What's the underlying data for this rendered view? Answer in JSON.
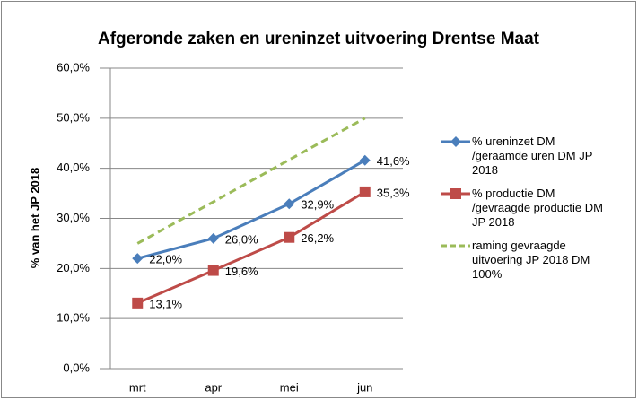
{
  "chart_data": {
    "type": "line",
    "title": "Afgeronde zaken en ureninzet uitvoering Drentse Maat",
    "ylabel": "% van het JP 2018",
    "categories": [
      "mrt",
      "apr",
      "mei",
      "jun"
    ],
    "series": [
      {
        "name": "% ureninzet DM /geraamde uren DM JP 2018",
        "color": "#4a7ebb",
        "marker": "diamond",
        "dash": false,
        "values": [
          22.0,
          26.0,
          32.9,
          41.6
        ],
        "value_labels": [
          "22,0%",
          "26,0%",
          "32,9%",
          "41,6%"
        ]
      },
      {
        "name": "% productie DM /gevraagde productie DM JP 2018",
        "color": "#be4b48",
        "marker": "square",
        "dash": false,
        "values": [
          13.1,
          19.6,
          26.2,
          35.3
        ],
        "value_labels": [
          "13,1%",
          "19,6%",
          "26,2%",
          "35,3%"
        ]
      },
      {
        "name": "raming gevraagde uitvoering JP 2018 DM 100%",
        "color": "#9bbb59",
        "marker": "none",
        "dash": true,
        "values": [
          25.0,
          33.3,
          41.7,
          50.0
        ]
      }
    ],
    "ylim": [
      0,
      60
    ],
    "yticks": [
      {
        "value": 0,
        "label": "0,0%"
      },
      {
        "value": 10,
        "label": "10,0%"
      },
      {
        "value": 20,
        "label": "20,0%"
      },
      {
        "value": 30,
        "label": "30,0%"
      },
      {
        "value": 40,
        "label": "40,0%"
      },
      {
        "value": 50,
        "label": "50,0%"
      },
      {
        "value": 60,
        "label": "60,0%"
      }
    ],
    "grid": true,
    "legend": "right"
  }
}
